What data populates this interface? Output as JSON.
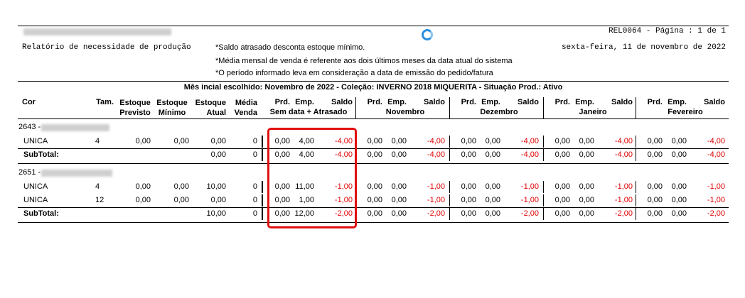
{
  "header": {
    "report_code": "REL0064 - Página : 1 de 1",
    "report_title": "Relatório de necessidade de produção",
    "date": "sexta-feira, 11 de novembro de 2022",
    "notes": [
      "*Saldo atrasado desconta estoque mínimo.",
      "*Média mensal de venda é referente aos dois últimos meses da data atual do sistema",
      "*O período informado leva em consideração a data de emissão do pedido/fatura"
    ],
    "filter_line": "Mês incial escolhido: Novembro de 2022  - Coleção: INVERNO 2018 MIQUERITA - Situação Prod.: Ativo"
  },
  "columns": {
    "cor": "Cor",
    "tam": "Tam.",
    "estoque_previsto": [
      "Estoque",
      "Previsto"
    ],
    "estoque_minimo": [
      "Estoque",
      "Mínimo"
    ],
    "estoque_atual": [
      "Estoque",
      "Atual"
    ],
    "media_venda": [
      "Média",
      "Venda"
    ],
    "period_sub": [
      "Prd.",
      "Emp.",
      "Saldo"
    ],
    "periods": [
      "Sem data + Atrasado",
      "Novembro",
      "Dezembro",
      "Janeiro",
      "Fevereiro"
    ]
  },
  "groups": [
    {
      "code": "2643 -",
      "rows": [
        {
          "cor": "UNICA",
          "tam": "4",
          "previsto": "0,00",
          "minimo": "0,00",
          "atual": "0,00",
          "media": "0",
          "periods": [
            [
              "0,00",
              "4,00",
              "-4,00"
            ],
            [
              "0,00",
              "0,00",
              "-4,00"
            ],
            [
              "0,00",
              "0,00",
              "-4,00"
            ],
            [
              "0,00",
              "0,00",
              "-4,00"
            ],
            [
              "0,00",
              "0,00",
              "-4,00"
            ]
          ]
        }
      ],
      "subtotal": {
        "label": "SubTotal:",
        "atual": "0,00",
        "media": "0",
        "periods": [
          [
            "0,00",
            "4,00",
            "-4,00"
          ],
          [
            "0,00",
            "0,00",
            "-4,00"
          ],
          [
            "0,00",
            "0,00",
            "-4,00"
          ],
          [
            "0,00",
            "0,00",
            "-4,00"
          ],
          [
            "0,00",
            "0,00",
            "-4,00"
          ]
        ]
      }
    },
    {
      "code": "2651 -",
      "rows": [
        {
          "cor": "UNICA",
          "tam": "4",
          "previsto": "0,00",
          "minimo": "0,00",
          "atual": "10,00",
          "media": "0",
          "periods": [
            [
              "0,00",
              "11,00",
              "-1,00"
            ],
            [
              "0,00",
              "0,00",
              "-1,00"
            ],
            [
              "0,00",
              "0,00",
              "-1,00"
            ],
            [
              "0,00",
              "0,00",
              "-1,00"
            ],
            [
              "0,00",
              "0,00",
              "-1,00"
            ]
          ]
        },
        {
          "cor": "UNICA",
          "tam": "12",
          "previsto": "0,00",
          "minimo": "0,00",
          "atual": "0,00",
          "media": "0",
          "periods": [
            [
              "0,00",
              "1,00",
              "-1,00"
            ],
            [
              "0,00",
              "0,00",
              "-1,00"
            ],
            [
              "0,00",
              "0,00",
              "-1,00"
            ],
            [
              "0,00",
              "0,00",
              "-1,00"
            ],
            [
              "0,00",
              "0,00",
              "-1,00"
            ]
          ]
        }
      ],
      "subtotal": {
        "label": "SubTotal:",
        "atual": "10,00",
        "media": "0",
        "periods": [
          [
            "0,00",
            "12,00",
            "-2,00"
          ],
          [
            "0,00",
            "0,00",
            "-2,00"
          ],
          [
            "0,00",
            "0,00",
            "-2,00"
          ],
          [
            "0,00",
            "0,00",
            "-2,00"
          ],
          [
            "0,00",
            "0,00",
            "-2,00"
          ]
        ]
      }
    }
  ],
  "colors": {
    "negative": "#e00000",
    "highlight_box": "#e01010",
    "spinner": "#2b8fe0"
  }
}
